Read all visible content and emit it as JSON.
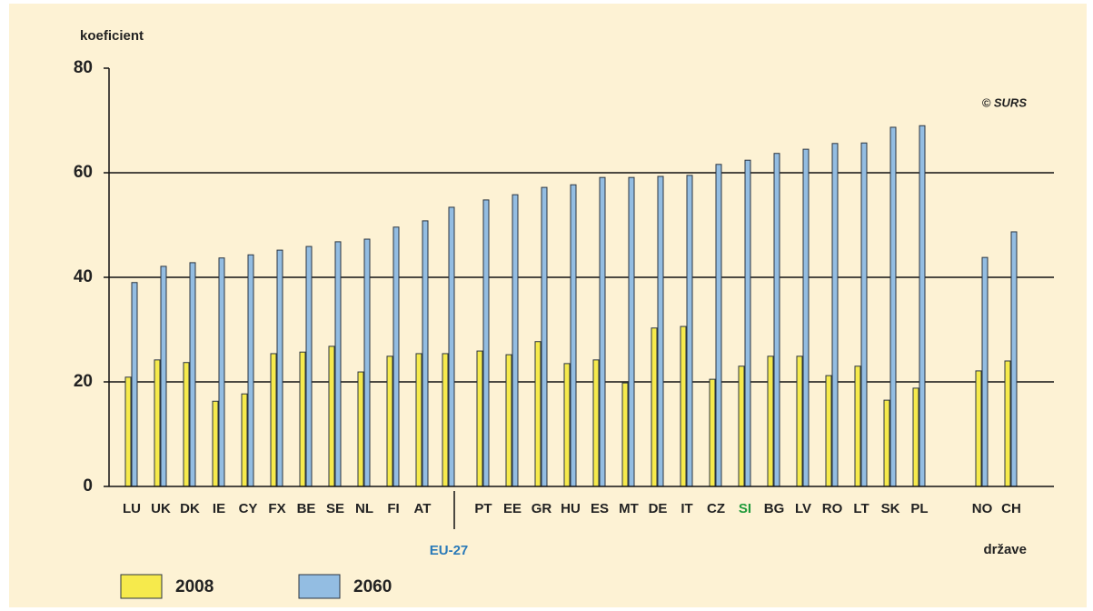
{
  "chart_data": {
    "type": "bar",
    "y_label": "koeficient",
    "x_label": "države",
    "source": "© SURS",
    "categories": [
      "LU",
      "UK",
      "DK",
      "IE",
      "CY",
      "FX",
      "BE",
      "SE",
      "NL",
      "FI",
      "AT",
      "EU-27",
      "PT",
      "EE",
      "GR",
      "HU",
      "ES",
      "MT",
      "DE",
      "IT",
      "CZ",
      "SI",
      "BG",
      "LV",
      "RO",
      "LT",
      "SK",
      "PL",
      "NO",
      "CH"
    ],
    "series": [
      {
        "name": "2008",
        "color": "#f6ea4c",
        "values": [
          20.9,
          24.2,
          23.7,
          16.3,
          17.7,
          25.4,
          25.7,
          26.8,
          21.9,
          24.9,
          25.4,
          25.4,
          25.9,
          25.2,
          27.7,
          23.5,
          24.2,
          19.8,
          30.3,
          30.6,
          20.5,
          23.0,
          24.9,
          24.9,
          21.2,
          23.0,
          16.5,
          18.8,
          22.1,
          24.0
        ]
      },
      {
        "name": "2060",
        "color": "#93bde2",
        "values": [
          39.0,
          42.1,
          42.8,
          43.7,
          44.3,
          45.2,
          45.9,
          46.8,
          47.3,
          49.6,
          50.8,
          53.4,
          54.8,
          55.8,
          57.2,
          57.7,
          59.1,
          59.1,
          59.3,
          59.5,
          61.6,
          62.4,
          63.7,
          64.5,
          65.6,
          65.7,
          68.7,
          69.0,
          43.8,
          48.7
        ]
      }
    ],
    "ylim": [
      0,
      80
    ],
    "yticks": [
      0,
      20,
      40,
      60,
      80
    ],
    "grid": true
  }
}
